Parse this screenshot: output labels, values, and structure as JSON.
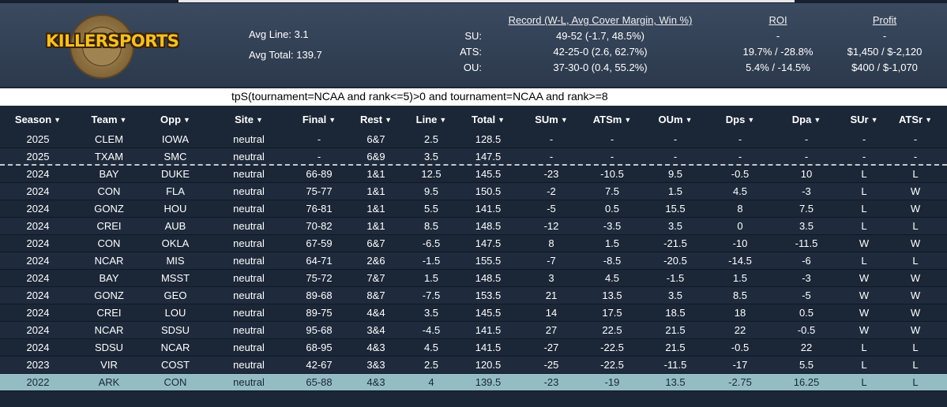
{
  "logo": {
    "brand": "KILLERSPORTS"
  },
  "summary": {
    "avg_line_label": "Avg Line:",
    "avg_line": "3.1",
    "avg_total_label": "Avg Total:",
    "avg_total": "139.7"
  },
  "headers": {
    "record": "Record (W-L, Avg Cover Margin, Win %)",
    "roi": "ROI",
    "profit": "Profit"
  },
  "stats": [
    {
      "label": "SU:",
      "record": "49-52 (-1.7, 48.5%)",
      "roi": "-",
      "profit": "-"
    },
    {
      "label": "ATS:",
      "record": "42-25-0 (2.6, 62.7%)",
      "roi": "19.7% / -28.8%",
      "profit": "$1,450 / $-2,120"
    },
    {
      "label": "OU:",
      "record": "37-30-0 (0.4, 55.2%)",
      "roi": "5.4% / -14.5%",
      "profit": "$400 / $-1,070"
    }
  ],
  "query": "tpS(tournament=NCAA and rank<=5)>0 and tournament=NCAA and rank>=8",
  "columns": [
    "Season",
    "Team",
    "Opp",
    "Site",
    "Final",
    "Rest",
    "Line",
    "Total",
    "SUm",
    "ATSm",
    "OUm",
    "Dps",
    "Dpa",
    "SUr",
    "ATSr"
  ],
  "caret": "▼",
  "rows": [
    [
      "2025",
      "CLEM",
      "IOWA",
      "neutral",
      "-",
      "6&7",
      "2.5",
      "128.5",
      "-",
      "-",
      "-",
      "-",
      "-",
      "-",
      "-"
    ],
    [
      "2025",
      "TXAM",
      "SMC",
      "neutral",
      "-",
      "6&9",
      "3.5",
      "147.5",
      "-",
      "-",
      "-",
      "-",
      "-",
      "-",
      "-"
    ],
    [
      "2024",
      "BAY",
      "DUKE",
      "neutral",
      "66-89",
      "1&1",
      "12.5",
      "145.5",
      "-23",
      "-10.5",
      "9.5",
      "-0.5",
      "10",
      "L",
      "L"
    ],
    [
      "2024",
      "CON",
      "FLA",
      "neutral",
      "75-77",
      "1&1",
      "9.5",
      "150.5",
      "-2",
      "7.5",
      "1.5",
      "4.5",
      "-3",
      "L",
      "W"
    ],
    [
      "2024",
      "GONZ",
      "HOU",
      "neutral",
      "76-81",
      "1&1",
      "5.5",
      "141.5",
      "-5",
      "0.5",
      "15.5",
      "8",
      "7.5",
      "L",
      "W"
    ],
    [
      "2024",
      "CREI",
      "AUB",
      "neutral",
      "70-82",
      "1&1",
      "8.5",
      "148.5",
      "-12",
      "-3.5",
      "3.5",
      "0",
      "3.5",
      "L",
      "L"
    ],
    [
      "2024",
      "CON",
      "OKLA",
      "neutral",
      "67-59",
      "6&7",
      "-6.5",
      "147.5",
      "8",
      "1.5",
      "-21.5",
      "-10",
      "-11.5",
      "W",
      "W"
    ],
    [
      "2024",
      "NCAR",
      "MIS",
      "neutral",
      "64-71",
      "2&6",
      "-1.5",
      "155.5",
      "-7",
      "-8.5",
      "-20.5",
      "-14.5",
      "-6",
      "L",
      "L"
    ],
    [
      "2024",
      "BAY",
      "MSST",
      "neutral",
      "75-72",
      "7&7",
      "1.5",
      "148.5",
      "3",
      "4.5",
      "-1.5",
      "1.5",
      "-3",
      "W",
      "W"
    ],
    [
      "2024",
      "GONZ",
      "GEO",
      "neutral",
      "89-68",
      "8&7",
      "-7.5",
      "153.5",
      "21",
      "13.5",
      "3.5",
      "8.5",
      "-5",
      "W",
      "W"
    ],
    [
      "2024",
      "CREI",
      "LOU",
      "neutral",
      "89-75",
      "4&4",
      "3.5",
      "145.5",
      "14",
      "17.5",
      "18.5",
      "18",
      "0.5",
      "W",
      "W"
    ],
    [
      "2024",
      "NCAR",
      "SDSU",
      "neutral",
      "95-68",
      "3&4",
      "-4.5",
      "141.5",
      "27",
      "22.5",
      "21.5",
      "22",
      "-0.5",
      "W",
      "W"
    ],
    [
      "2024",
      "SDSU",
      "NCAR",
      "neutral",
      "68-95",
      "4&3",
      "4.5",
      "141.5",
      "-27",
      "-22.5",
      "21.5",
      "-0.5",
      "22",
      "L",
      "L"
    ],
    [
      "2023",
      "VIR",
      "COST",
      "neutral",
      "42-67",
      "3&3",
      "2.5",
      "120.5",
      "-25",
      "-22.5",
      "-11.5",
      "-17",
      "5.5",
      "L",
      "L"
    ],
    [
      "2022",
      "ARK",
      "CON",
      "neutral",
      "65-88",
      "4&3",
      "4",
      "139.5",
      "-23",
      "-19",
      "13.5",
      "-2.75",
      "16.25",
      "L",
      "L"
    ]
  ],
  "colors": {
    "background": "#1b2637",
    "header_gradient_top": "#3b4a60",
    "selected_row": "#93bdc3",
    "logo_text": "#f4c028"
  }
}
